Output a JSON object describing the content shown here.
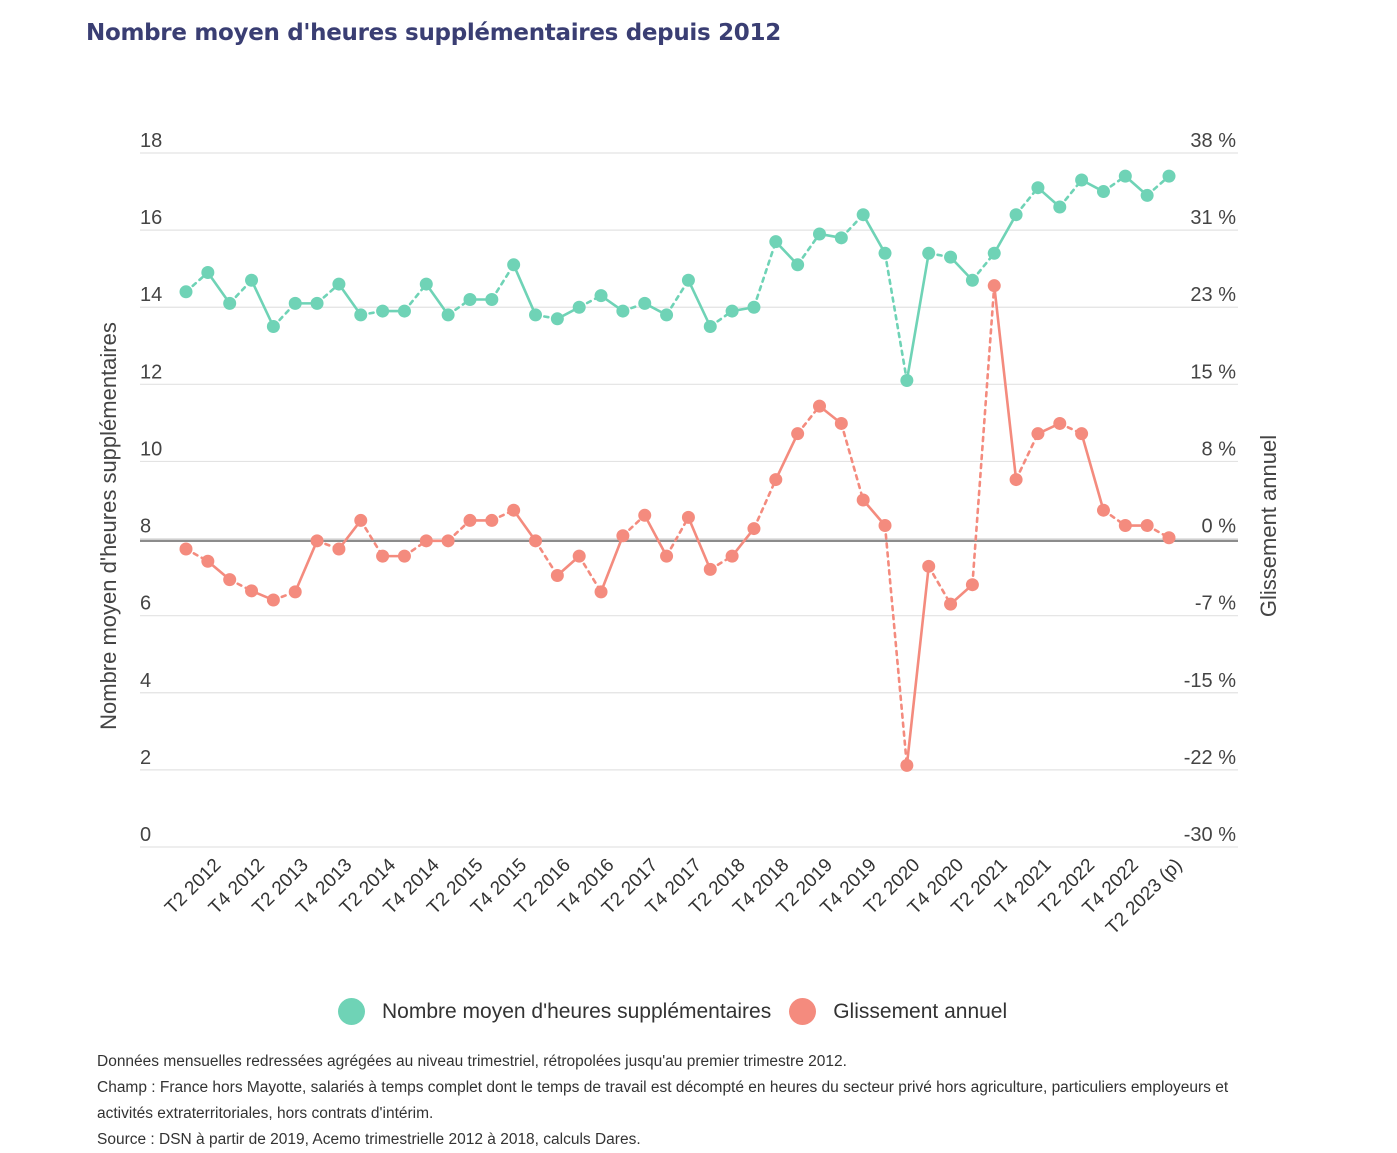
{
  "title": "Nombre moyen d'heures supplémentaires depuis 2012",
  "chart_data": {
    "type": "line",
    "title": "Nombre moyen d'heures supplémentaires depuis 2012",
    "ylabel": "Nombre moyen d'heures supplémentaires",
    "y2label": "Glissement annuel",
    "ylim": [
      0,
      18
    ],
    "y2lim": [
      -30,
      38
    ],
    "left_ticks": [
      "0",
      "2",
      "4",
      "6",
      "8",
      "10",
      "12",
      "14",
      "16",
      "18"
    ],
    "right_ticks": [
      "-30 %",
      "-22 %",
      "-15 %",
      "-7 %",
      "0 %",
      "8 %",
      "15 %",
      "23 %",
      "31 %",
      "38 %"
    ],
    "grid": true,
    "x_tick_labels": [
      "T2 2012",
      "T4 2012",
      "T2 2013",
      "T4 2013",
      "T2 2014",
      "T4 2014",
      "T2 2015",
      "T4 2015",
      "T2 2016",
      "T4 2016",
      "T2 2017",
      "T4 2017",
      "T2 2018",
      "T4 2018",
      "T2 2019",
      "T4 2019",
      "T2 2020",
      "T4 2020",
      "T2 2021",
      "T4 2021",
      "T2 2022",
      "T4 2022",
      "T2 2023 (p)"
    ],
    "x": [
      "T1 2012",
      "T2 2012",
      "T3 2012",
      "T4 2012",
      "T1 2013",
      "T2 2013",
      "T3 2013",
      "T4 2013",
      "T1 2014",
      "T2 2014",
      "T3 2014",
      "T4 2014",
      "T1 2015",
      "T2 2015",
      "T3 2015",
      "T4 2015",
      "T1 2016",
      "T2 2016",
      "T3 2016",
      "T4 2016",
      "T1 2017",
      "T2 2017",
      "T3 2017",
      "T4 2017",
      "T1 2018",
      "T2 2018",
      "T3 2018",
      "T4 2018",
      "T1 2019",
      "T2 2019",
      "T3 2019",
      "T4 2019",
      "T1 2020",
      "T2 2020",
      "T3 2020",
      "T4 2020",
      "T1 2021",
      "T2 2021",
      "T3 2021",
      "T4 2021",
      "T1 2022",
      "T2 2022",
      "T3 2022",
      "T4 2022",
      "T1 2023",
      "T2 2023 (p)"
    ],
    "series": [
      {
        "name": "Nombre moyen d'heures supplémentaires",
        "axis": "left",
        "color": "#6fd3b6",
        "values": [
          14.4,
          14.9,
          14.1,
          14.7,
          13.5,
          14.1,
          14.1,
          14.6,
          13.8,
          13.9,
          13.9,
          14.6,
          13.8,
          14.2,
          14.2,
          15.1,
          13.8,
          13.7,
          14.0,
          14.3,
          13.9,
          14.1,
          13.8,
          14.7,
          13.5,
          13.9,
          14.0,
          15.7,
          15.1,
          15.9,
          15.8,
          16.4,
          15.4,
          12.1,
          15.4,
          15.3,
          14.7,
          15.4,
          16.4,
          17.1,
          16.6,
          17.3,
          17.0,
          17.4,
          16.9,
          17.4
        ]
      },
      {
        "name": "Glissement annuel",
        "axis": "right",
        "color": "#f48b7e",
        "values": [
          -0.8,
          -2.0,
          -3.8,
          -4.9,
          -5.8,
          -5.0,
          0.0,
          -0.8,
          2.0,
          -1.5,
          -1.5,
          0.0,
          0.0,
          2.0,
          2.0,
          3.0,
          0.0,
          -3.4,
          -1.5,
          -5.0,
          0.5,
          2.5,
          -1.5,
          2.3,
          -2.8,
          -1.5,
          1.2,
          6.0,
          10.5,
          13.2,
          11.5,
          4.0,
          1.5,
          -22.0,
          -2.5,
          -6.2,
          -4.3,
          25.0,
          6.0,
          10.5,
          11.5,
          10.5,
          3.0,
          1.5,
          1.5,
          0.3
        ]
      }
    ],
    "legend": [
      {
        "label": "Nombre moyen d'heures supplémentaires",
        "color": "#6fd3b6"
      },
      {
        "label": "Glissement annuel",
        "color": "#f48b7e"
      }
    ],
    "legend_position": "bottom"
  },
  "notes": [
    "Données mensuelles redressées agrégées au niveau trimestriel, rétropolées jusqu'au premier trimestre 2012.",
    "Champ : France hors Mayotte, salariés à temps complet dont le temps de travail est décompté en heures du secteur privé hors agriculture, particuliers employeurs et activités extraterritoriales, hors contrats d'intérim.",
    "Source : DSN à partir de 2019, Acemo trimestrielle 2012 à 2018, calculs Dares."
  ]
}
